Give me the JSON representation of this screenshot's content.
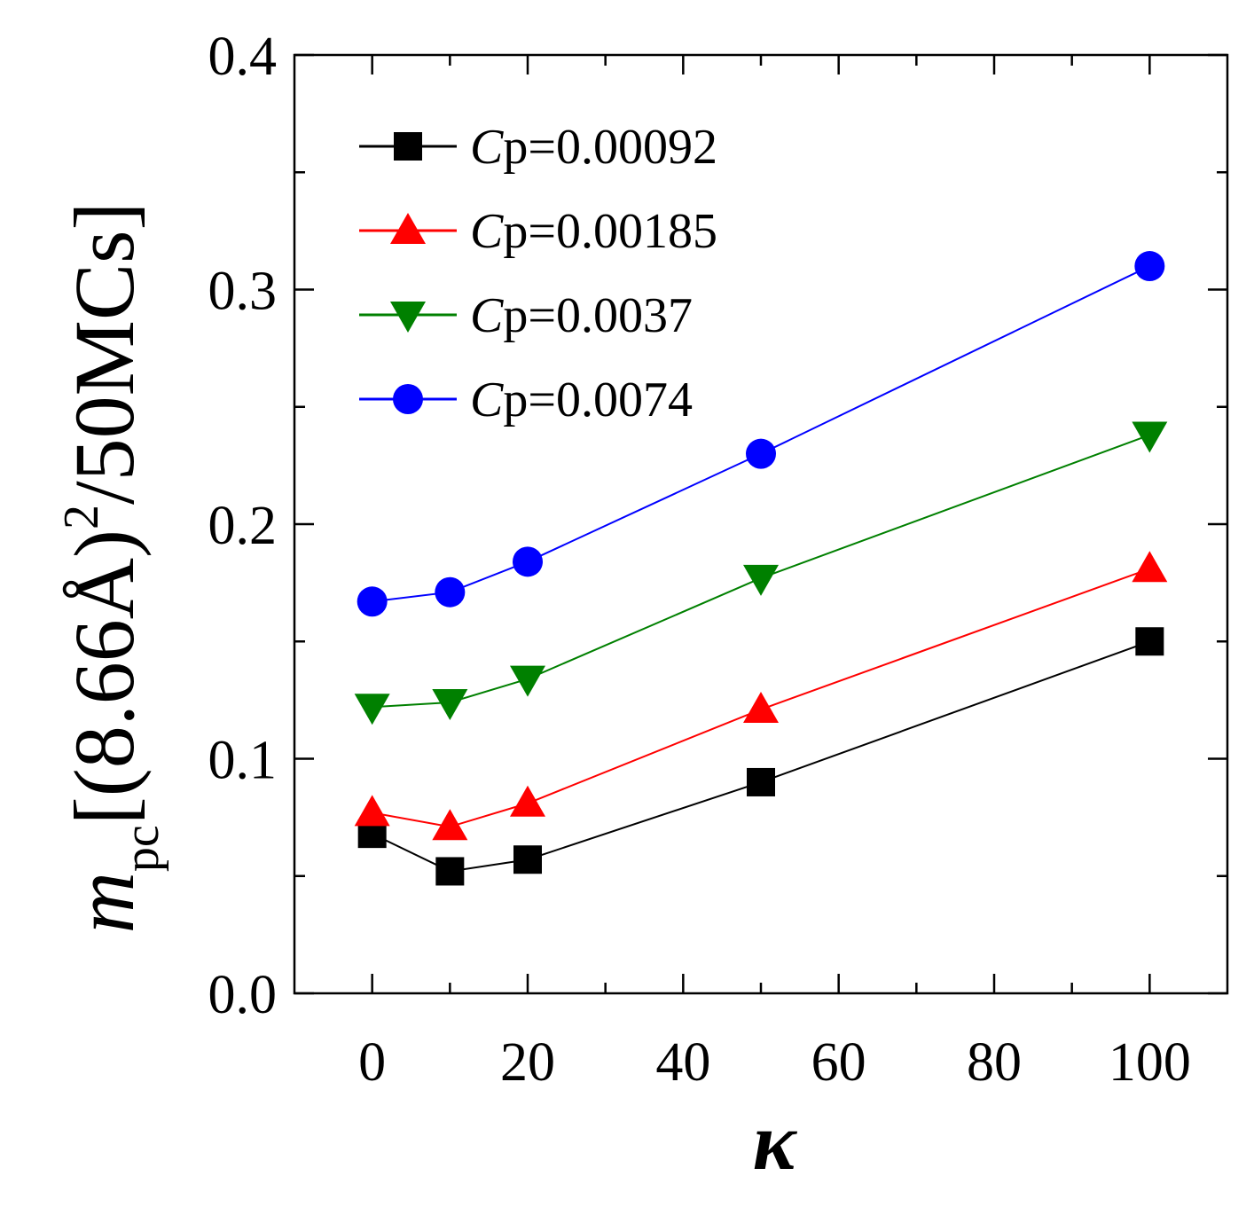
{
  "chart_data": {
    "type": "line",
    "title": "",
    "xlabel": "κ",
    "ylabel": {
      "symbol": "m",
      "subscript": "pc",
      "unit_open": "[(8.66Å)",
      "superscript": "2",
      "unit_close": "/50MCs]"
    },
    "xlim": [
      -10,
      110
    ],
    "ylim": [
      0.0,
      0.4
    ],
    "xticks": [
      0,
      20,
      40,
      60,
      80,
      100
    ],
    "xtick_labels": [
      "0",
      "20",
      "40",
      "60",
      "80",
      "100"
    ],
    "yticks": [
      0.0,
      0.1,
      0.2,
      0.3,
      0.4
    ],
    "ytick_labels": [
      "0.0",
      "0.1",
      "0.2",
      "0.3",
      "0.4"
    ],
    "grid": false,
    "legend_position": "top-left",
    "x": [
      0,
      10,
      20,
      50,
      100
    ],
    "series": [
      {
        "name_prefix": "C",
        "name_sub": "p",
        "name_value": "=0.00092",
        "color": "#000000",
        "marker": "square",
        "values": [
          0.068,
          0.052,
          0.057,
          0.09,
          0.15
        ]
      },
      {
        "name_prefix": "C",
        "name_sub": "p",
        "name_value": "=0.00185",
        "color": "#ff0000",
        "marker": "triangle-up",
        "values": [
          0.077,
          0.071,
          0.081,
          0.121,
          0.181
        ]
      },
      {
        "name_prefix": "C",
        "name_sub": "p",
        "name_value": "=0.0037",
        "color": "#008000",
        "marker": "triangle-down",
        "values": [
          0.122,
          0.124,
          0.134,
          0.177,
          0.238
        ]
      },
      {
        "name_prefix": "C",
        "name_sub": "p",
        "name_value": "=0.0074",
        "color": "#0000ff",
        "marker": "circle",
        "values": [
          0.167,
          0.171,
          0.184,
          0.23,
          0.31
        ]
      }
    ]
  }
}
